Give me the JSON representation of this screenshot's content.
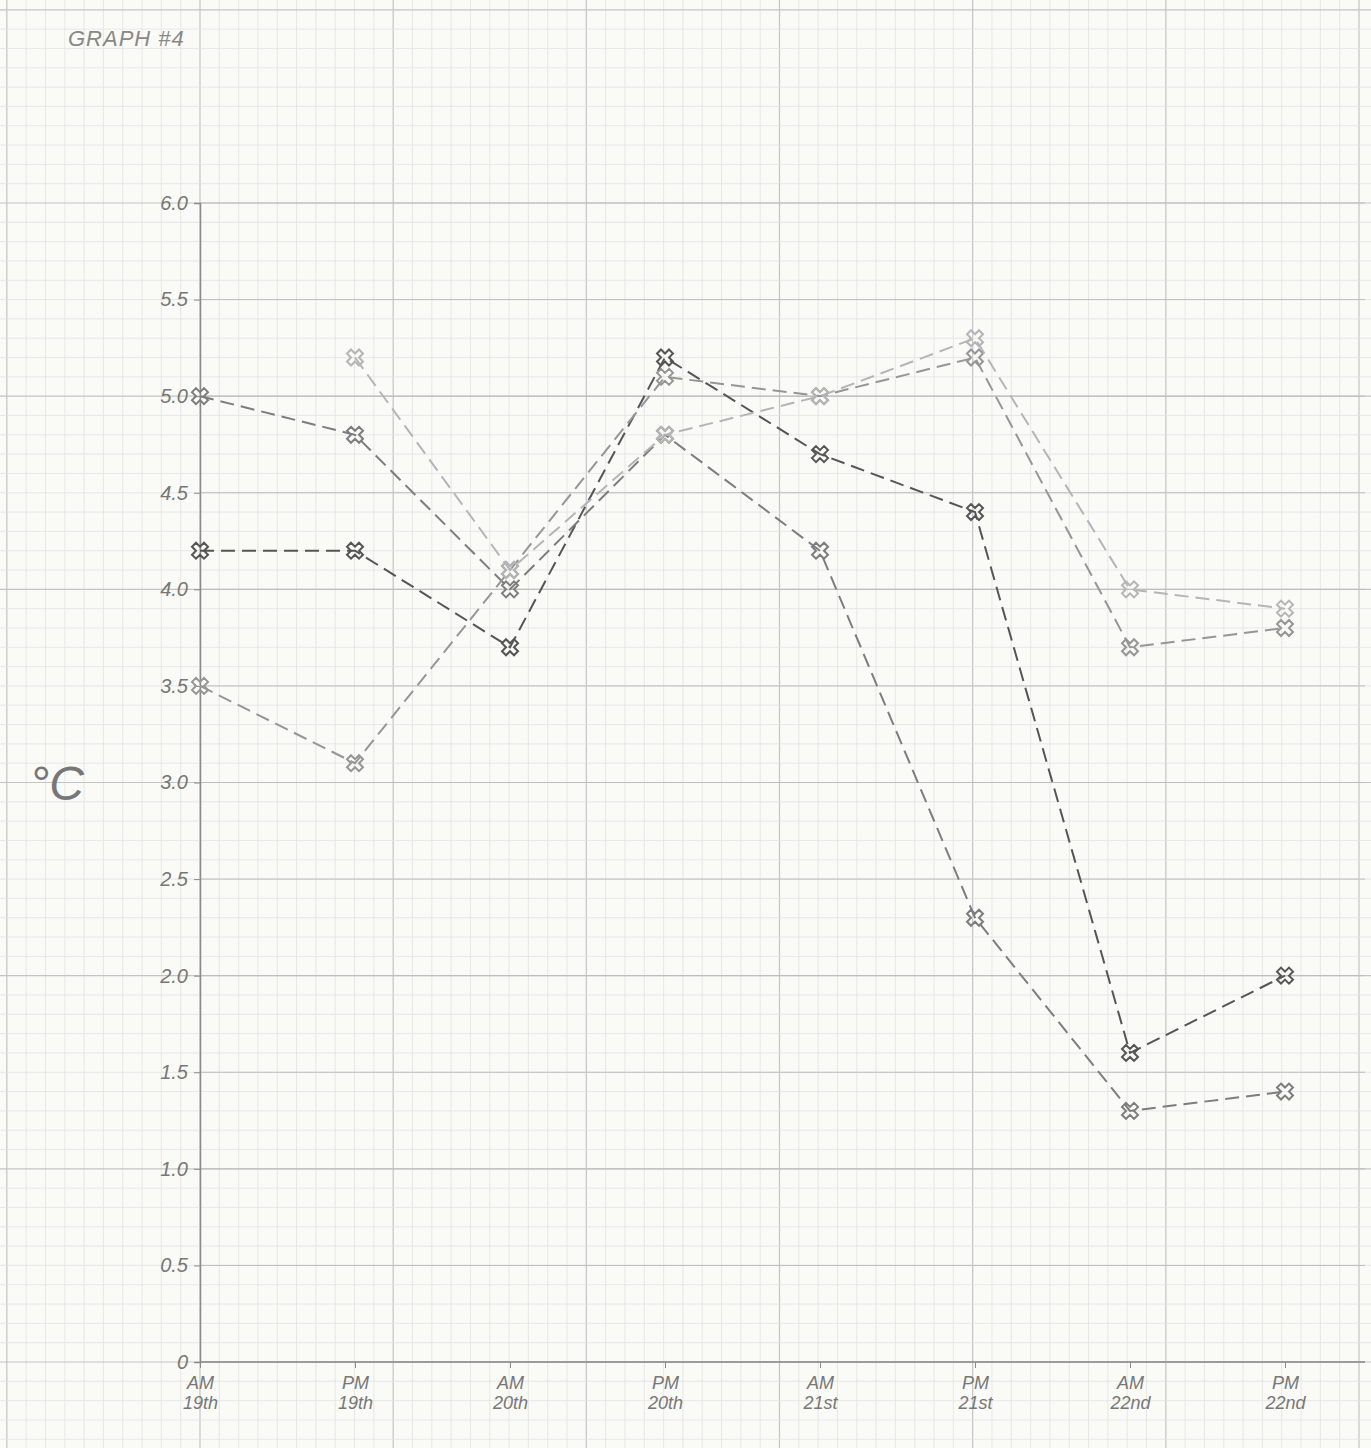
{
  "chart_data": {
    "type": "line",
    "title": "GRAPH #4",
    "y_label": "°C",
    "categories": [
      "AM 19th",
      "PM 19th",
      "AM 20th",
      "PM 20th",
      "AM 21st",
      "PM 21st",
      "AM 22nd",
      "PM 22nd"
    ],
    "series": [
      {
        "color": "#555555",
        "marker": "x",
        "line_style": "dashed",
        "values": [
          4.2,
          4.2,
          3.7,
          5.2,
          4.7,
          4.4,
          1.6,
          2.0
        ]
      },
      {
        "color": "#7d7d7d",
        "marker": "x",
        "line_style": "dashed",
        "values": [
          5.0,
          4.8,
          4.0,
          4.8,
          4.2,
          2.3,
          1.3,
          1.4
        ]
      },
      {
        "color": "#969696",
        "marker": "x",
        "line_style": "dashed",
        "values": [
          3.5,
          3.1,
          4.1,
          5.1,
          5.0,
          5.2,
          3.7,
          3.8
        ]
      },
      {
        "color": "#b5b5b5",
        "marker": "x",
        "line_style": "dashed",
        "values": [
          null,
          5.2,
          4.1,
          4.8,
          5.0,
          5.3,
          4.0,
          3.9
        ]
      }
    ],
    "ylim": [
      0,
      6
    ],
    "yticks": [
      0,
      0.5,
      {
        "value": 1,
        "label": "1.0"
      },
      1.5,
      {
        "value": 2,
        "label": "2.0"
      },
      2.5,
      {
        "value": 3,
        "label": "3.0"
      },
      3.5,
      {
        "value": 4,
        "label": "4.0"
      },
      4.5,
      {
        "value": 5,
        "label": "5.0"
      },
      5.5,
      {
        "value": 6,
        "label": "6.0"
      }
    ],
    "grid": true
  }
}
